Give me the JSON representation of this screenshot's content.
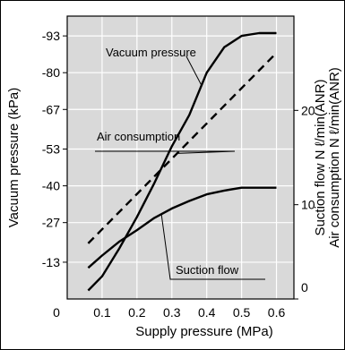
{
  "chart_data": {
    "type": "line",
    "xlabel": "Supply pressure (MPa)",
    "ylabel_left": "Vacuum pressure (kPa)",
    "ylabel_right": [
      "Suction flow N ℓ/min(ANR)",
      "Air consumption N ℓ/min(ANR)"
    ],
    "x_ticks": [
      "0",
      "0.1",
      "0.2",
      "0.3",
      "0.4",
      "0.5",
      "0.6"
    ],
    "left_ticks": [
      "-93",
      "-80",
      "-67",
      "-53",
      "-40",
      "-27",
      "-13"
    ],
    "right_ticks": [
      "0",
      "10",
      "20"
    ],
    "xlim": [
      0,
      0.65
    ],
    "ylim_left_magnitude": [
      0,
      100
    ],
    "ylim_right": [
      0,
      30
    ],
    "grid": true,
    "series": [
      {
        "name": "Vacuum pressure",
        "axis": "left",
        "x": [
          0.06,
          0.1,
          0.15,
          0.2,
          0.25,
          0.3,
          0.35,
          0.4,
          0.45,
          0.5,
          0.55,
          0.6
        ],
        "y": [
          -3,
          -8,
          -18,
          -29,
          -41,
          -54,
          -65,
          -80,
          -89,
          -93,
          -94,
          -94
        ],
        "dash": "solid"
      },
      {
        "name": "Air consumption",
        "axis": "right",
        "x": [
          0.06,
          0.6
        ],
        "y": [
          5.9,
          26.1
        ],
        "dash": "dashed"
      },
      {
        "name": "Suction flow",
        "axis": "right",
        "x": [
          0.06,
          0.1,
          0.15,
          0.2,
          0.25,
          0.3,
          0.35,
          0.4,
          0.45,
          0.5,
          0.55,
          0.6
        ],
        "y": [
          3.3,
          4.6,
          6.1,
          7.3,
          8.6,
          9.6,
          10.4,
          11.1,
          11.5,
          11.8,
          11.8,
          11.8
        ],
        "dash": "solid"
      }
    ]
  }
}
